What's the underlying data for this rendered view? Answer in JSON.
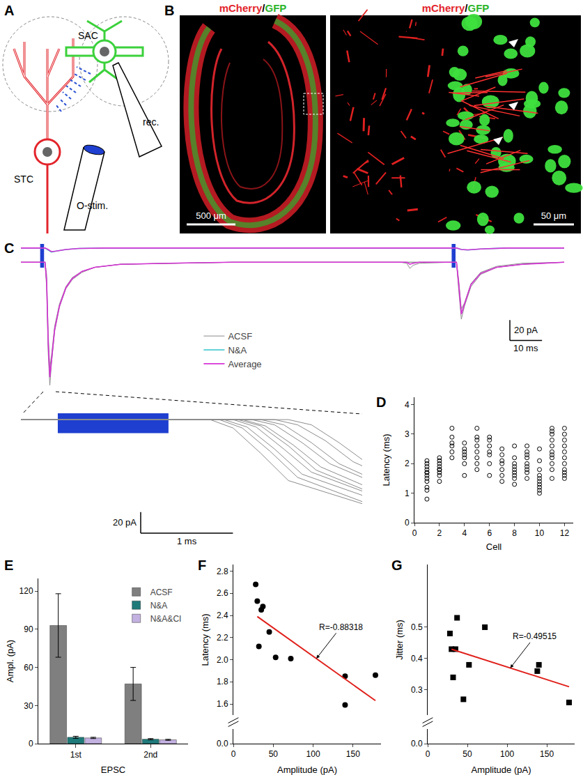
{
  "diagram": {
    "panel": "A",
    "labels": {
      "sac": "SAC",
      "stc": "STC",
      "stim": "O-stim.",
      "rec": "rec."
    }
  },
  "images": {
    "panel": "B",
    "title_red": "mCherry",
    "title_sep": "/",
    "title_green": "GFP",
    "scale_left": "500 μm",
    "scale_right": "50 μm"
  },
  "chart_data": [
    {
      "type": "line",
      "panel": "C",
      "tick_labels": false,
      "legend": "center",
      "xlim": [
        -6,
        163
      ],
      "ylim": [
        -128,
        18
      ],
      "stimuli": [
        [
          0,
          1.2
        ],
        [
          128,
          129.2
        ]
      ],
      "scale_bar": {
        "x": 10,
        "y": 20,
        "x_label": "10 ms",
        "y_label": "20 pA"
      },
      "series": [
        {
          "name": "ACSF",
          "color": "#8c8c8c",
          "x": [
            -6,
            0,
            1.5,
            2,
            2.5,
            3,
            3.5,
            4.5,
            6,
            8,
            10,
            13,
            17,
            25,
            40,
            60,
            100,
            112,
            114,
            115,
            116,
            118,
            128,
            129.5,
            130.2,
            131,
            132,
            134,
            137,
            142,
            150,
            163
          ],
          "values": [
            0,
            0,
            0,
            -25,
            -90,
            -121,
            -100,
            -68,
            -44,
            -26,
            -17,
            -10,
            -5,
            -2,
            -1,
            0,
            0,
            0,
            0,
            0,
            0,
            0,
            0,
            0,
            -28,
            -56,
            -43,
            -24,
            -12,
            -5,
            -2,
            0
          ]
        },
        {
          "name": "ACSF",
          "color": "#8c8c8c",
          "x": [
            -6,
            0,
            1.5,
            2,
            2.5,
            3,
            3.5,
            4.5,
            6,
            8,
            10,
            13,
            17,
            25,
            40,
            60,
            100,
            112,
            114,
            115,
            116,
            118,
            128,
            129.5,
            130.2,
            131,
            132,
            134,
            137,
            142,
            150,
            163
          ],
          "values": [
            0,
            0,
            0,
            -18,
            -80,
            -112,
            -96,
            -66,
            -43,
            -25,
            -16,
            -9,
            -5,
            -2,
            -1,
            0,
            0,
            0,
            -1,
            -6,
            -3,
            -1,
            0,
            0,
            -22,
            -50,
            -41,
            -22,
            -11,
            -5,
            -2,
            0
          ]
        },
        {
          "name": "ACSF",
          "color": "#8c8c8c",
          "x": [
            -6,
            0,
            1.5,
            2,
            2.5,
            3,
            3.5,
            4.5,
            6,
            8,
            10,
            13,
            17,
            25,
            40,
            60,
            100,
            112,
            114,
            115,
            116,
            118,
            128,
            129.5,
            130.2,
            131,
            132,
            134,
            137,
            142,
            150,
            163
          ],
          "values": [
            0,
            0,
            0,
            -12,
            -70,
            -104,
            -92,
            -63,
            -41,
            -24,
            -15,
            -9,
            -5,
            -2,
            -1,
            0,
            0,
            0,
            0,
            0,
            0,
            0,
            0,
            0,
            -18,
            -46,
            -40,
            -21,
            -10,
            -4,
            -1,
            0
          ]
        },
        {
          "name": "N&A",
          "color": "#2ec4cc",
          "x": [
            -6,
            0,
            1.5,
            2.5,
            3.5,
            5,
            8,
            12,
            20,
            40,
            128,
            129.5,
            131,
            133,
            137,
            145,
            163
          ],
          "values": [
            14,
            14,
            14,
            12,
            10,
            11,
            12.5,
            13.5,
            14,
            14,
            14,
            14,
            12.5,
            12,
            13,
            14,
            14
          ]
        },
        {
          "name": "Average",
          "color": "#d633d6",
          "x": [
            -6,
            0,
            1.5,
            2,
            2.5,
            3,
            3.5,
            4.5,
            6,
            8,
            10,
            13,
            17,
            25,
            40,
            60,
            100,
            112,
            114,
            115,
            116,
            118,
            128,
            129.5,
            130.2,
            131,
            132,
            134,
            137,
            142,
            150,
            163
          ],
          "values": [
            0,
            0,
            0,
            -18,
            -80,
            -113,
            -96,
            -66,
            -43,
            -25,
            -16,
            -9,
            -5,
            -2,
            -1,
            0,
            0,
            0,
            0,
            -2,
            -1,
            0,
            0,
            0,
            -22,
            -51,
            -41,
            -22,
            -11,
            -5,
            -2,
            0
          ]
        },
        {
          "name": "Average",
          "color": "#d633d6",
          "x": [
            -6,
            0,
            1.5,
            2.5,
            3.5,
            5,
            8,
            12,
            20,
            40,
            128,
            129.5,
            131,
            133,
            137,
            145,
            163
          ],
          "values": [
            14,
            14,
            14,
            12.5,
            10.5,
            11,
            12.5,
            13.5,
            14,
            14,
            14,
            14,
            12.5,
            12.2,
            13,
            14,
            14
          ]
        }
      ]
    },
    {
      "type": "line",
      "tick_labels": false,
      "xlim": [
        -0.4,
        3.3
      ],
      "ylim": [
        -112,
        6
      ],
      "stimuli": [
        [
          0,
          1.2
        ]
      ],
      "scale_bar": {
        "x": 1,
        "y": 20,
        "x_label": "1 ms",
        "y_label": "20 pA"
      },
      "series": [
        {
          "name": "ACSF",
          "color": "#8c8c8c",
          "x": [
            -0.4,
            1.65,
            1.9,
            2.2,
            2.5,
            3.3
          ],
          "values": [
            0,
            0,
            -8,
            -32,
            -58,
            -80
          ]
        },
        {
          "name": "ACSF",
          "color": "#8c8c8c",
          "x": [
            -0.4,
            1.75,
            2.0,
            2.3,
            2.6,
            3.3
          ],
          "values": [
            0,
            0,
            -8,
            -30,
            -55,
            -78
          ]
        },
        {
          "name": "ACSF",
          "color": "#8c8c8c",
          "x": [
            -0.4,
            1.8,
            2.05,
            2.35,
            2.65,
            3.3
          ],
          "values": [
            0,
            0,
            -7,
            -28,
            -52,
            -72
          ]
        },
        {
          "name": "ACSF",
          "color": "#8c8c8c",
          "x": [
            -0.4,
            1.9,
            2.15,
            2.45,
            2.75,
            3.3
          ],
          "values": [
            0,
            0,
            -7,
            -28,
            -50,
            -68
          ]
        },
        {
          "name": "ACSF",
          "color": "#8c8c8c",
          "x": [
            -0.4,
            1.95,
            2.2,
            2.5,
            2.8,
            3.3
          ],
          "values": [
            0,
            0,
            -6,
            -25,
            -48,
            -66
          ]
        },
        {
          "name": "ACSF",
          "color": "#8c8c8c",
          "x": [
            -0.4,
            2.0,
            2.25,
            2.55,
            2.85,
            3.3
          ],
          "values": [
            0,
            0,
            -6,
            -24,
            -45,
            -62
          ]
        },
        {
          "name": "ACSF",
          "color": "#8c8c8c",
          "x": [
            -0.4,
            2.1,
            2.35,
            2.65,
            2.95,
            3.3
          ],
          "values": [
            0,
            0,
            -5,
            -22,
            -42,
            -55
          ]
        },
        {
          "name": "ACSF",
          "color": "#8c8c8c",
          "x": [
            -0.4,
            2.2,
            2.45,
            2.75,
            3.05,
            3.3
          ],
          "values": [
            0,
            0,
            -5,
            -22,
            -42,
            -52
          ]
        },
        {
          "name": "ACSF",
          "color": "#8c8c8c",
          "x": [
            -0.4,
            2.35,
            2.6,
            2.9,
            3.2,
            3.3
          ],
          "values": [
            0,
            0,
            -5,
            -20,
            -40,
            -44
          ]
        },
        {
          "name": "ACSF",
          "color": "#8c8c8c",
          "x": [
            -0.4,
            2.5,
            2.75,
            3.05,
            3.3
          ],
          "values": [
            0,
            0,
            -5,
            -22,
            -38
          ]
        }
      ]
    },
    {
      "type": "scatter",
      "panel": "D",
      "marker": "open circle",
      "color": "#000000",
      "x_label": "Cell",
      "y_label": "Latency (ms)",
      "xlim": [
        0,
        12.7
      ],
      "xticks": [
        0,
        2,
        4,
        6,
        8,
        10,
        12
      ],
      "ylim": [
        0,
        4.25
      ],
      "yticks": [
        0,
        1,
        2,
        3,
        4
      ],
      "x": [
        1,
        1,
        1,
        1,
        1,
        1,
        1,
        1,
        1,
        1,
        1,
        1,
        2,
        2,
        2,
        2,
        2,
        2,
        2,
        2,
        2,
        3,
        3,
        3,
        3,
        3,
        3,
        4,
        4,
        4,
        4,
        4,
        4,
        4,
        5,
        5,
        5,
        5,
        5,
        5,
        5,
        5,
        6,
        6,
        6,
        6,
        6,
        6,
        6,
        7,
        7,
        7,
        7,
        7,
        7,
        7,
        8,
        8,
        8,
        8,
        8,
        8,
        8,
        8,
        8,
        9,
        9,
        9,
        9,
        9,
        9,
        9,
        9,
        9,
        10,
        10,
        10,
        10,
        10,
        10,
        10,
        10,
        10,
        10,
        11,
        11,
        11,
        11,
        11,
        11,
        11,
        11,
        11,
        11,
        11,
        12,
        12,
        12,
        12,
        12,
        12,
        12,
        12,
        12,
        12,
        12
      ],
      "values": [
        0.8,
        1.1,
        1.2,
        1.4,
        1.5,
        1.6,
        1.7,
        1.7,
        1.8,
        1.9,
        2.0,
        2.1,
        1.4,
        1.6,
        1.7,
        1.8,
        1.8,
        1.9,
        2.0,
        2.1,
        2.2,
        2.2,
        2.4,
        2.6,
        2.7,
        2.9,
        3.2,
        1.6,
        2.0,
        2.2,
        2.3,
        2.4,
        2.5,
        2.7,
        1.8,
        2.0,
        2.2,
        2.4,
        2.6,
        2.8,
        2.9,
        3.2,
        1.6,
        2.0,
        2.3,
        2.4,
        2.6,
        2.8,
        2.9,
        1.4,
        1.6,
        1.8,
        2.0,
        2.1,
        2.3,
        2.5,
        1.3,
        1.5,
        1.6,
        1.7,
        1.8,
        1.9,
        2.0,
        2.2,
        2.6,
        1.5,
        1.7,
        1.8,
        1.9,
        2.0,
        2.2,
        2.3,
        2.4,
        2.6,
        1.0,
        1.1,
        1.2,
        1.3,
        1.4,
        1.5,
        1.6,
        1.8,
        2.1,
        2.5,
        1.5,
        1.8,
        2.0,
        2.2,
        2.3,
        2.4,
        2.6,
        2.8,
        3.0,
        3.1,
        3.2,
        1.5,
        1.6,
        1.7,
        1.8,
        2.0,
        2.2,
        2.4,
        2.6,
        2.8,
        3.0,
        3.2
      ]
    },
    {
      "type": "bar",
      "panel": "E",
      "legend": "top-right",
      "x_label": "EPSC",
      "y_label": "Ampl. (pA)",
      "categories": [
        "1st",
        "2nd"
      ],
      "ylim": [
        0,
        130
      ],
      "yticks": [
        0,
        30,
        60,
        90,
        120
      ],
      "series": [
        {
          "name": "ACSF",
          "color": "#7f7f7f",
          "values": [
            93,
            47
          ],
          "errors": [
            25,
            13
          ]
        },
        {
          "name": "N&A",
          "color": "#1f7a7a",
          "values": [
            5,
            3.5
          ],
          "errors": [
            0.8,
            0.5
          ]
        },
        {
          "name": "N&A&CI",
          "color": "#c3b1e1",
          "values": [
            4.5,
            3
          ],
          "errors": [
            0.5,
            0.4
          ]
        }
      ]
    },
    {
      "type": "scatter",
      "panel": "F",
      "marker": "circle",
      "color": "#000000",
      "x_label": "Amplitude (pA)",
      "y_label": "Latency (ms)",
      "xlim": [
        0,
        185
      ],
      "xticks": [
        0,
        50,
        100,
        150
      ],
      "ylim": [
        1.5,
        2.86
      ],
      "yticks": [
        1.6,
        1.8,
        {
          "value": 2,
          "label": "2.0"
        },
        2.2,
        2.4,
        2.6,
        2.8
      ],
      "ylim_lower": [
        0,
        0.12
      ],
      "yticks_lower": [
        {
          "value": 0,
          "label": "0.0"
        }
      ],
      "x": [
        28,
        30,
        35,
        37,
        32,
        45,
        53,
        72,
        140,
        140,
        178
      ],
      "values": [
        2.68,
        2.53,
        2.45,
        2.48,
        2.12,
        2.25,
        2.02,
        2.01,
        1.85,
        1.59,
        1.86
      ],
      "fit": {
        "x": [
          30,
          178
        ],
        "values": [
          2.39,
          1.63
        ],
        "color": "#e0201b",
        "label": "R=-0.88318"
      }
    },
    {
      "type": "scatter",
      "panel": "G",
      "marker": "square",
      "color": "#000000",
      "x_label": "Amplitude (pA)",
      "y_label": "Jitter (ms)",
      "xlim": [
        0,
        185
      ],
      "xticks": [
        0,
        50,
        100,
        150
      ],
      "ylim": [
        0.22,
        0.7
      ],
      "yticks": [
        0.3,
        0.4,
        0.5
      ],
      "ylim_lower": [
        0,
        0.12
      ],
      "yticks_lower": [
        {
          "value": 0,
          "label": "0.0"
        }
      ],
      "x": [
        28,
        30,
        32,
        35,
        37,
        45,
        52,
        72,
        138,
        140,
        178
      ],
      "values": [
        0.48,
        0.43,
        0.34,
        0.43,
        0.53,
        0.27,
        0.38,
        0.5,
        0.36,
        0.38,
        0.26
      ],
      "fit": {
        "x": [
          30,
          178
        ],
        "values": [
          0.43,
          0.31
        ],
        "color": "#e0201b",
        "label": "R=-0.49515"
      }
    }
  ]
}
